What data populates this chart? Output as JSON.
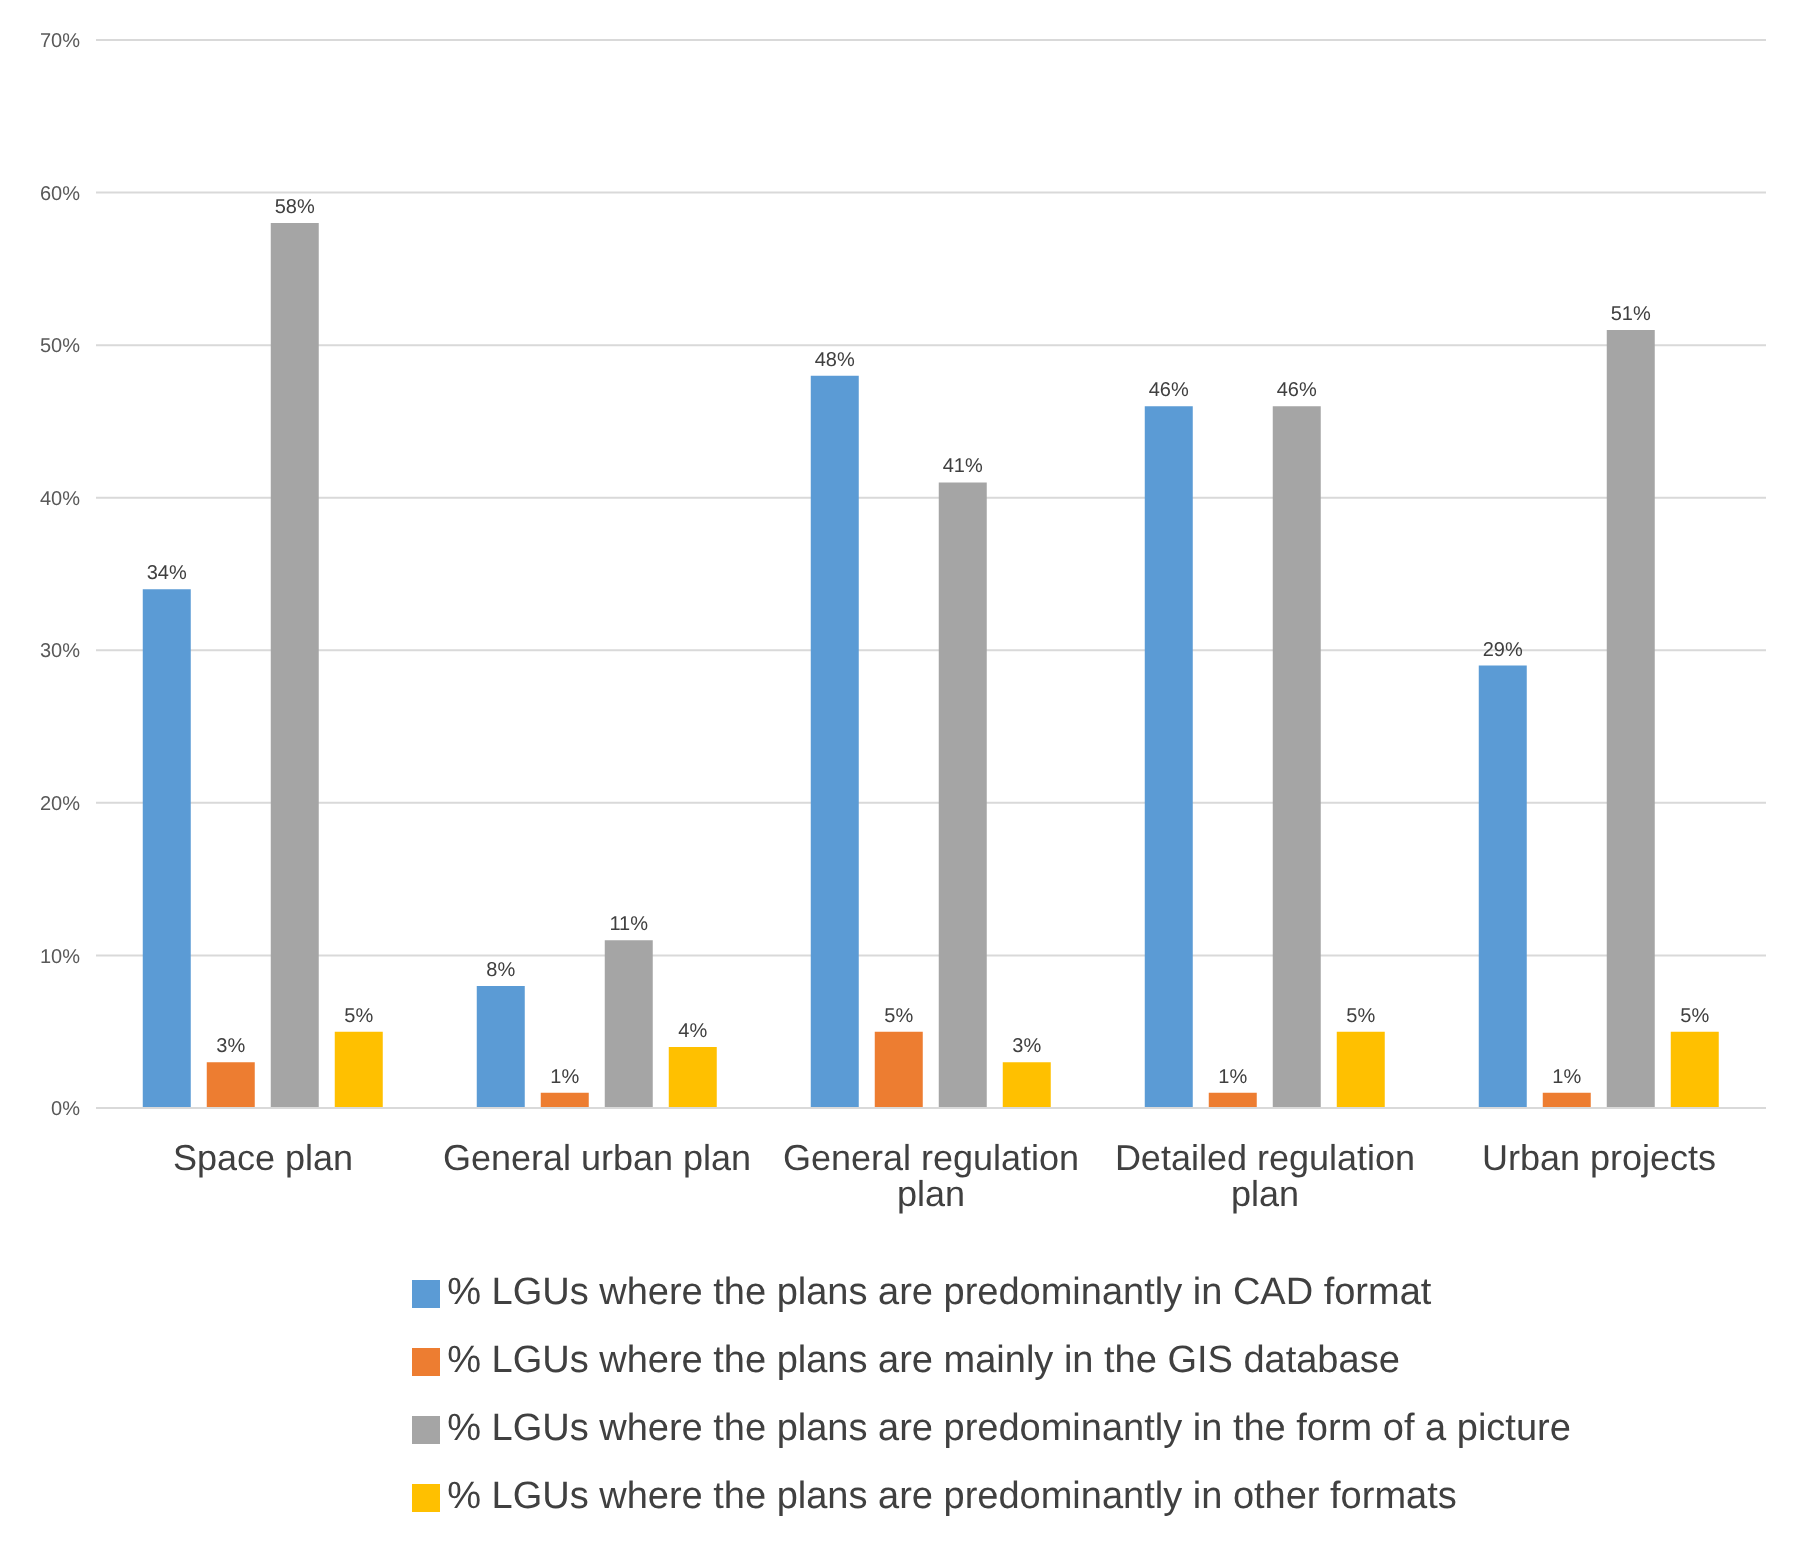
{
  "chart_data": {
    "type": "bar",
    "categories": [
      "Space plan",
      "General urban plan",
      "General regulation plan",
      "Detailed regulation plan",
      "Urban projects"
    ],
    "series": [
      {
        "name": "% LGUs where the plans are predominantly in CAD format",
        "color": "#5b9bd5",
        "values": [
          34,
          8,
          48,
          46,
          29
        ],
        "value_labels": [
          "34%",
          "8%",
          "48%",
          "46%",
          "29%"
        ]
      },
      {
        "name": "% LGUs where the plans are mainly in the GIS database",
        "color": "#ed7d31",
        "values": [
          3,
          1,
          5,
          1,
          1
        ],
        "value_labels": [
          "3%",
          "1%",
          "5%",
          "1%",
          "1%"
        ]
      },
      {
        "name": "% LGUs where the plans are predominantly in the form of a picture",
        "color": "#a5a5a5",
        "values": [
          58,
          11,
          41,
          46,
          51
        ],
        "value_labels": [
          "58%",
          "11%",
          "41%",
          "46%",
          "51%"
        ]
      },
      {
        "name": "% LGUs where the plans are predominantly in other formats",
        "color": "#ffc000",
        "values": [
          5,
          4,
          3,
          5,
          5
        ],
        "value_labels": [
          "5%",
          "4%",
          "3%",
          "5%",
          "5%"
        ]
      }
    ],
    "ylim": [
      0,
      70
    ],
    "yticks": [
      {
        "value": 0,
        "label": "0%"
      },
      {
        "value": 10,
        "label": "10%"
      },
      {
        "value": 20,
        "label": "20%"
      },
      {
        "value": 30,
        "label": "30%"
      },
      {
        "value": 40,
        "label": "40%"
      },
      {
        "value": 50,
        "label": "50%"
      },
      {
        "value": 60,
        "label": "60%"
      },
      {
        "value": 70,
        "label": "70%"
      }
    ],
    "grid": "y",
    "legend": "bottom"
  }
}
